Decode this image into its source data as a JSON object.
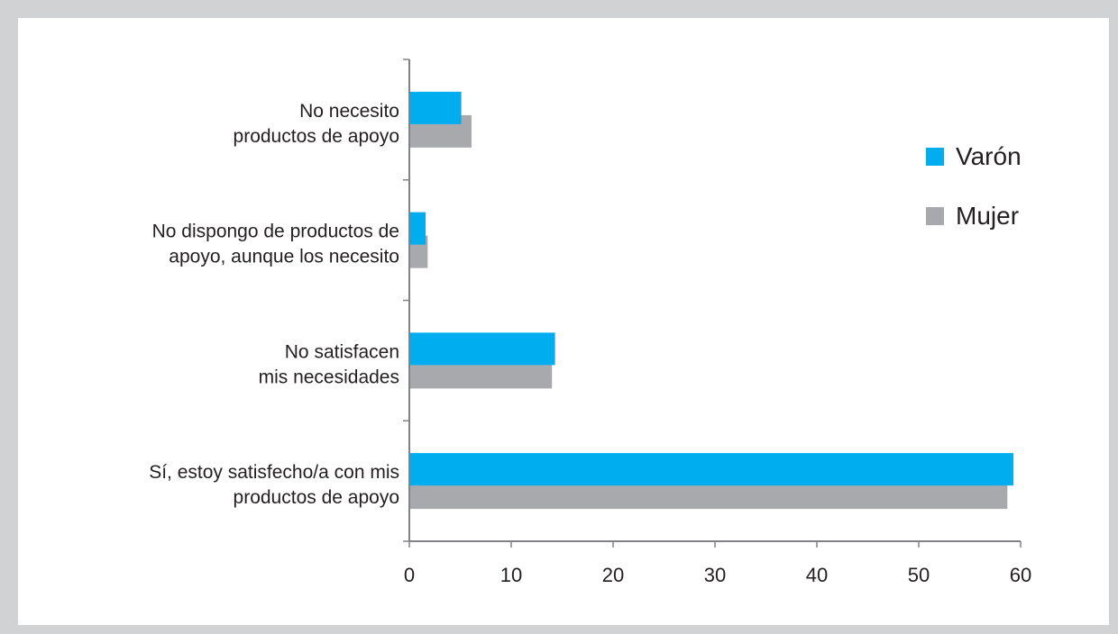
{
  "chart_data": {
    "type": "bar",
    "orientation": "horizontal",
    "categories": [
      "Sí, estoy satisfecho/a con mis productos de apoyo",
      "No satisfacen mis necesidades",
      "No dispongo de productos de apoyo, aunque los necesito",
      "No necesito productos de apoyo"
    ],
    "category_lines": [
      [
        "Sí, estoy satisfecho/a con mis",
        "productos de apoyo"
      ],
      [
        "No satisfacen",
        "mis necesidades"
      ],
      [
        "No dispongo de productos de",
        "apoyo, aunque los necesito"
      ],
      [
        "No necesito",
        "productos de apoyo"
      ]
    ],
    "series": [
      {
        "name": "Varón",
        "color": "#00aeef",
        "values": [
          59.3,
          14.3,
          1.6,
          5.1
        ]
      },
      {
        "name": "Mujer",
        "color": "#a7a9ac",
        "values": [
          58.7,
          14.0,
          1.8,
          6.1
        ]
      }
    ],
    "xlim": [
      0,
      60
    ],
    "xticks": [
      0,
      10,
      20,
      30,
      40,
      50,
      60
    ],
    "title": "",
    "xlabel": "",
    "ylabel": "",
    "grid": false,
    "legend_position": "right"
  },
  "colors": {
    "frame_border": "#d1d2d4",
    "axis": "#808285",
    "text": "#231f20"
  }
}
